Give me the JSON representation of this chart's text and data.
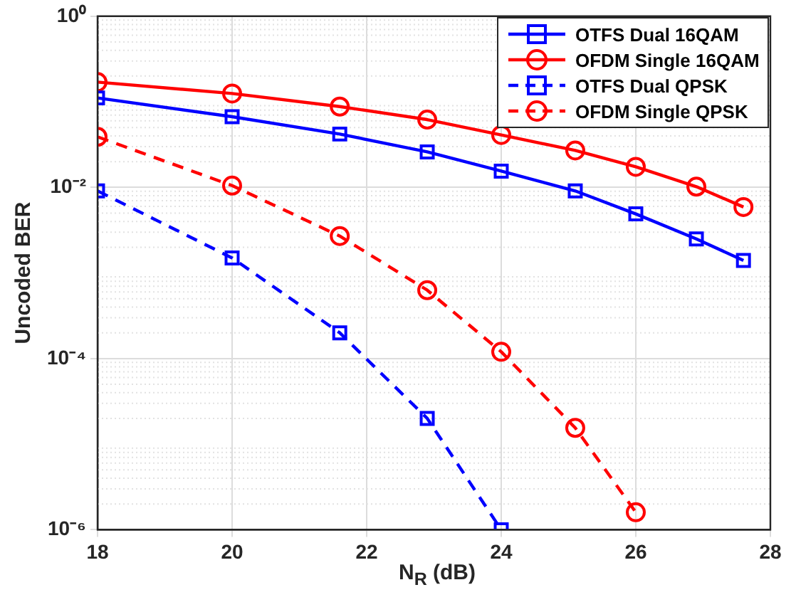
{
  "chart_data": {
    "type": "line",
    "xlabel": "N$_{R}$ (dB)",
    "ylabel": "Uncoded BER",
    "log": "y",
    "grid": true,
    "legend": "top right",
    "xlim": [
      18,
      28
    ],
    "xticks": [
      18,
      20,
      22,
      24,
      26,
      28
    ],
    "ylim": [
      1e-06,
      1
    ],
    "yticks": [
      {
        "value": 1e-06,
        "label": "10⁻⁶"
      },
      {
        "value": 0.0001,
        "label": "10⁻⁴"
      },
      {
        "value": 0.01,
        "label": "10⁻²"
      },
      {
        "value": 1,
        "label": "10⁰"
      }
    ],
    "series": [
      {
        "name": "OTFS Dual 16QAM",
        "color": "#0000ff",
        "marker": "square",
        "line_style": "solid",
        "x": [
          18,
          20,
          21.6,
          22.9,
          24,
          25.1,
          26,
          26.9,
          27.6
        ],
        "values": [
          0.111,
          0.067,
          0.042,
          0.026,
          0.0155,
          0.0091,
          0.0049,
          0.0025,
          0.0014
        ]
      },
      {
        "name": "OFDM Single 16QAM",
        "color": "#ff0000",
        "marker": "circle",
        "line_style": "solid",
        "x": [
          18,
          20,
          21.6,
          22.9,
          24,
          25.1,
          26,
          26.9,
          27.6
        ],
        "values": [
          0.17,
          0.125,
          0.088,
          0.062,
          0.041,
          0.027,
          0.0174,
          0.0102,
          0.0059
        ]
      },
      {
        "name": "OTFS Dual QPSK",
        "color": "#0000ff",
        "marker": "square",
        "line_style": "dashed",
        "x": [
          18,
          20,
          21.6,
          22.9,
          24
        ],
        "values": [
          0.0091,
          0.0015,
          0.0002,
          2e-05,
          1e-06
        ]
      },
      {
        "name": "OFDM Single QPSK",
        "color": "#ff0000",
        "marker": "circle",
        "line_style": "dashed",
        "x": [
          18,
          20,
          21.6,
          22.9,
          24,
          25.1,
          26
        ],
        "values": [
          0.039,
          0.0105,
          0.0027,
          0.00063,
          0.00012,
          1.55e-05,
          1.6e-06
        ]
      }
    ]
  }
}
